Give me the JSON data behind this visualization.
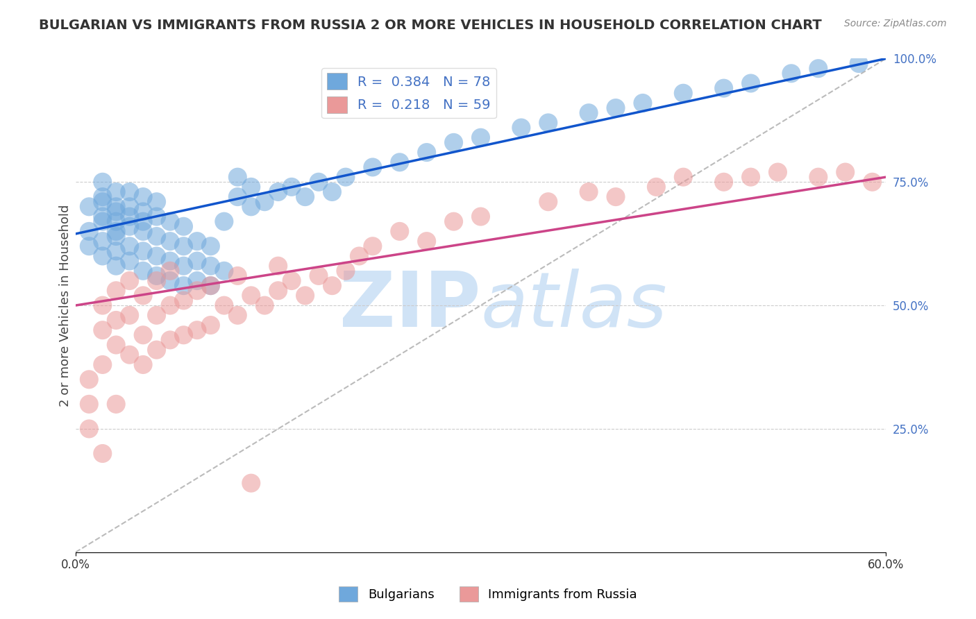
{
  "title": "BULGARIAN VS IMMIGRANTS FROM RUSSIA 2 OR MORE VEHICLES IN HOUSEHOLD CORRELATION CHART",
  "source": "Source: ZipAtlas.com",
  "ylabel": "2 or more Vehicles in Household",
  "xlim": [
    0.0,
    0.6
  ],
  "ylim": [
    0.0,
    1.0
  ],
  "yticks_right": [
    0.25,
    0.5,
    0.75,
    1.0
  ],
  "yticklabels_right": [
    "25.0%",
    "50.0%",
    "75.0%",
    "100.0%"
  ],
  "blue_R": 0.384,
  "blue_N": 78,
  "pink_R": 0.218,
  "pink_N": 59,
  "blue_color": "#6fa8dc",
  "pink_color": "#ea9999",
  "blue_line_color": "#1155cc",
  "pink_line_color": "#cc4488",
  "ref_line_color": "#bbbbbb",
  "background_color": "#ffffff",
  "watermark_color": "#c8dff5",
  "legend_label_blue": "Bulgarians",
  "legend_label_pink": "Immigrants from Russia",
  "blue_x": [
    0.01,
    0.01,
    0.01,
    0.02,
    0.02,
    0.02,
    0.02,
    0.02,
    0.02,
    0.02,
    0.03,
    0.03,
    0.03,
    0.03,
    0.03,
    0.03,
    0.03,
    0.03,
    0.04,
    0.04,
    0.04,
    0.04,
    0.04,
    0.04,
    0.05,
    0.05,
    0.05,
    0.05,
    0.05,
    0.05,
    0.06,
    0.06,
    0.06,
    0.06,
    0.06,
    0.07,
    0.07,
    0.07,
    0.07,
    0.08,
    0.08,
    0.08,
    0.08,
    0.09,
    0.09,
    0.09,
    0.1,
    0.1,
    0.1,
    0.11,
    0.11,
    0.12,
    0.12,
    0.13,
    0.13,
    0.14,
    0.15,
    0.16,
    0.17,
    0.18,
    0.19,
    0.2,
    0.22,
    0.24,
    0.26,
    0.28,
    0.3,
    0.33,
    0.35,
    0.38,
    0.4,
    0.42,
    0.45,
    0.48,
    0.5,
    0.53,
    0.55,
    0.58
  ],
  "blue_y": [
    0.62,
    0.65,
    0.7,
    0.6,
    0.63,
    0.67,
    0.72,
    0.75,
    0.68,
    0.71,
    0.58,
    0.61,
    0.65,
    0.7,
    0.73,
    0.67,
    0.64,
    0.69,
    0.59,
    0.62,
    0.66,
    0.7,
    0.73,
    0.68,
    0.57,
    0.61,
    0.65,
    0.69,
    0.72,
    0.67,
    0.56,
    0.6,
    0.64,
    0.68,
    0.71,
    0.55,
    0.59,
    0.63,
    0.67,
    0.54,
    0.58,
    0.62,
    0.66,
    0.55,
    0.59,
    0.63,
    0.54,
    0.58,
    0.62,
    0.57,
    0.67,
    0.72,
    0.76,
    0.7,
    0.74,
    0.71,
    0.73,
    0.74,
    0.72,
    0.75,
    0.73,
    0.76,
    0.78,
    0.79,
    0.81,
    0.83,
    0.84,
    0.86,
    0.87,
    0.89,
    0.9,
    0.91,
    0.93,
    0.94,
    0.95,
    0.97,
    0.98,
    0.99
  ],
  "pink_x": [
    0.01,
    0.01,
    0.01,
    0.02,
    0.02,
    0.02,
    0.02,
    0.03,
    0.03,
    0.03,
    0.03,
    0.04,
    0.04,
    0.04,
    0.05,
    0.05,
    0.05,
    0.06,
    0.06,
    0.06,
    0.07,
    0.07,
    0.07,
    0.08,
    0.08,
    0.09,
    0.09,
    0.1,
    0.1,
    0.11,
    0.12,
    0.12,
    0.13,
    0.14,
    0.15,
    0.15,
    0.16,
    0.17,
    0.18,
    0.19,
    0.2,
    0.21,
    0.22,
    0.24,
    0.26,
    0.28,
    0.3,
    0.35,
    0.38,
    0.4,
    0.43,
    0.45,
    0.48,
    0.5,
    0.52,
    0.55,
    0.57,
    0.59,
    0.13
  ],
  "pink_y": [
    0.35,
    0.3,
    0.25,
    0.45,
    0.38,
    0.5,
    0.2,
    0.42,
    0.47,
    0.53,
    0.3,
    0.4,
    0.48,
    0.55,
    0.38,
    0.44,
    0.52,
    0.41,
    0.48,
    0.55,
    0.43,
    0.5,
    0.57,
    0.44,
    0.51,
    0.45,
    0.53,
    0.46,
    0.54,
    0.5,
    0.48,
    0.56,
    0.52,
    0.5,
    0.53,
    0.58,
    0.55,
    0.52,
    0.56,
    0.54,
    0.57,
    0.6,
    0.62,
    0.65,
    0.63,
    0.67,
    0.68,
    0.71,
    0.73,
    0.72,
    0.74,
    0.76,
    0.75,
    0.76,
    0.77,
    0.76,
    0.77,
    0.75,
    0.14
  ]
}
